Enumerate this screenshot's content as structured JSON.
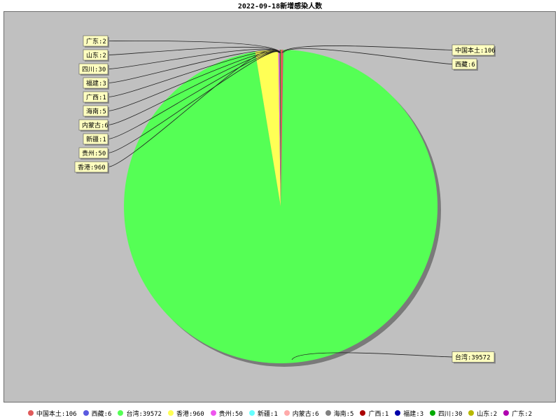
{
  "chart_data": {
    "type": "pie",
    "title": "2022-09-18新增感染人数",
    "legend_position": "bottom",
    "slices": [
      {
        "label": "中国本土",
        "value": 106,
        "color": "#e05a5a"
      },
      {
        "label": "西藏",
        "value": 6,
        "color": "#5a5ae0"
      },
      {
        "label": "台湾",
        "value": 39572,
        "color": "#55ff55"
      },
      {
        "label": "香港",
        "value": 960,
        "color": "#ffff55"
      },
      {
        "label": "贵州",
        "value": 50,
        "color": "#ee55ee"
      },
      {
        "label": "新疆",
        "value": 1,
        "color": "#66ffff"
      },
      {
        "label": "内蒙古",
        "value": 6,
        "color": "#ffaaaa"
      },
      {
        "label": "海南",
        "value": 5,
        "color": "#808080"
      },
      {
        "label": "广西",
        "value": 1,
        "color": "#aa0000"
      },
      {
        "label": "福建",
        "value": 3,
        "color": "#0000aa"
      },
      {
        "label": "四川",
        "value": 30,
        "color": "#00aa00"
      },
      {
        "label": "山东",
        "value": 2,
        "color": "#b8b800"
      },
      {
        "label": "广东",
        "value": 2,
        "color": "#b000b0"
      }
    ]
  }
}
